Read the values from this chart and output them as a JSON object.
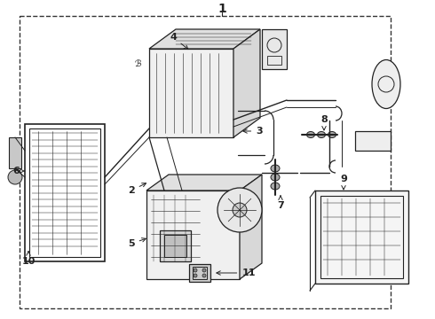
{
  "bg_color": "#ffffff",
  "line_color": "#222222",
  "border_color": "#444444",
  "fig_w": 4.9,
  "fig_h": 3.6,
  "dpi": 100
}
